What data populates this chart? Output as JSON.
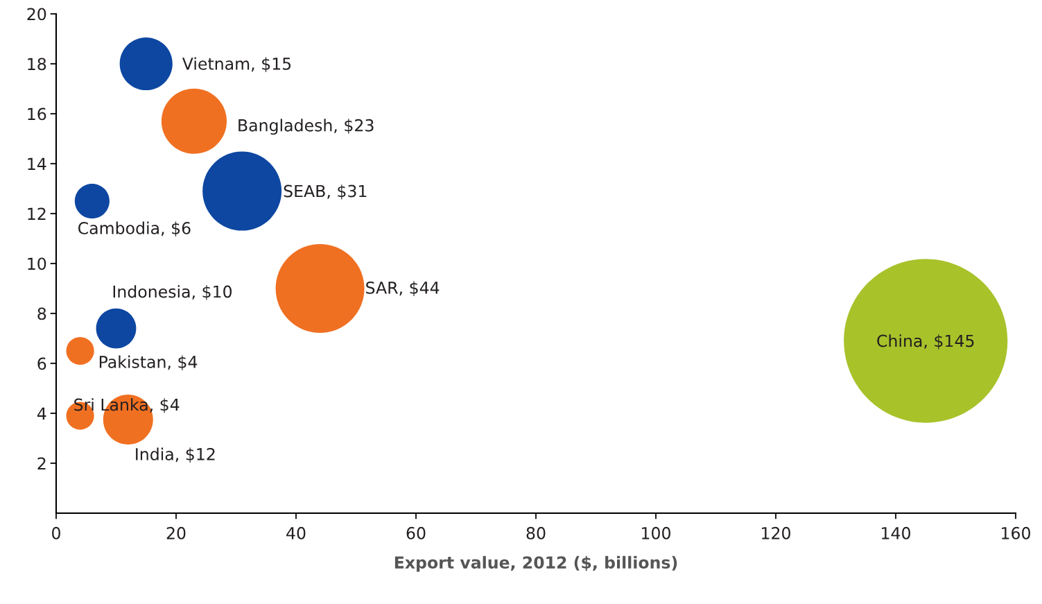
{
  "chart_data": {
    "type": "bubble",
    "xlabel": "Export value, 2012 ($, billions)",
    "xlim": [
      0,
      160
    ],
    "xticks": [
      0,
      20,
      40,
      60,
      80,
      100,
      120,
      140,
      160
    ],
    "ylim": [
      0,
      20
    ],
    "yticks": [
      2,
      4,
      6,
      8,
      10,
      12,
      14,
      16,
      18,
      20
    ],
    "grid": false,
    "legend": false,
    "series": [
      {
        "x": [
          15,
          23,
          31,
          6,
          44,
          145,
          10,
          4,
          4,
          12
        ],
        "values": [
          18.0,
          15.7,
          12.9,
          12.5,
          9.0,
          6.9,
          7.4,
          6.5,
          3.9,
          3.75
        ],
        "sizes": [
          0.104,
          0.159,
          0.233,
          0.045,
          0.294,
          1,
          0.06,
          0.029,
          0.029,
          0.093
        ],
        "colors": [
          "#0d47a1",
          "#f07022",
          "#0d47a1",
          "#0d47a1",
          "#f07022",
          "#a8c22a",
          "#0d47a1",
          "#f07022",
          "#f07022",
          "#f07022"
        ]
      }
    ],
    "annotations": [
      {
        "text": "Vietnam, $15",
        "x": 15,
        "y": 18.0
      },
      {
        "text": "Bangladesh, $23",
        "x": 23,
        "y": 15.7
      },
      {
        "text": "SEAB, $31",
        "x": 31,
        "y": 12.9
      },
      {
        "text": "Cambodia, $6",
        "x": 6,
        "y": 12.5
      },
      {
        "text": "SAR, $44",
        "x": 44,
        "y": 9.0
      },
      {
        "text": "China, $145",
        "x": 145,
        "y": 6.9
      },
      {
        "text": "Indonesia, $10",
        "x": 10,
        "y": 7.4
      },
      {
        "text": "Pakistan, $4",
        "x": 4,
        "y": 6.5
      },
      {
        "text": "Sri Lanka, $4",
        "x": 4,
        "y": 3.9
      },
      {
        "text": "India, $12",
        "x": 12,
        "y": 3.75
      }
    ]
  }
}
